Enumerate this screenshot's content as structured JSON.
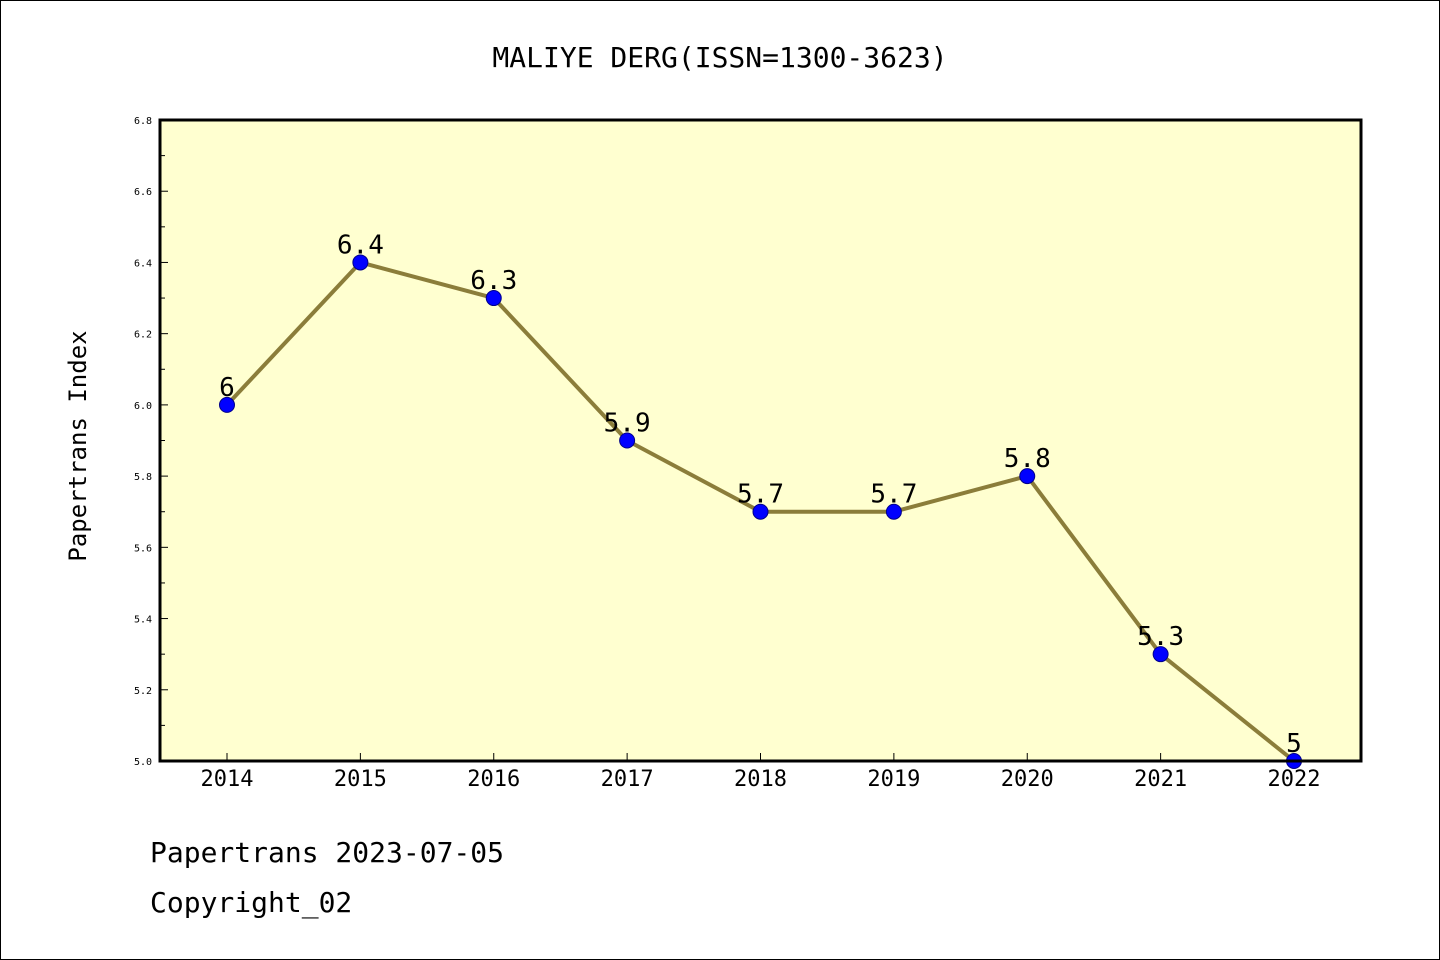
{
  "chart_data": {
    "type": "line",
    "title": "MALIYE DERG(ISSN=1300-3623)",
    "xlabel": "",
    "ylabel": "Papertrans Index",
    "categories": [
      "2014",
      "2015",
      "2016",
      "2017",
      "2018",
      "2019",
      "2020",
      "2021",
      "2022"
    ],
    "series": [
      {
        "values": [
          6.0,
          6.4,
          6.3,
          5.9,
          5.7,
          5.7,
          5.8,
          5.3,
          5.0
        ],
        "point_labels": [
          "6",
          "6.4",
          "6.3",
          "5.9",
          "5.7",
          "5.7",
          "5.8",
          "5.3",
          "5"
        ]
      }
    ],
    "ylim": [
      5.0,
      6.8
    ],
    "yticks": [
      "5.0",
      "5.2",
      "5.4",
      "5.6",
      "5.8",
      "6.0",
      "6.2",
      "6.4",
      "6.6",
      "6.8"
    ],
    "grid": false,
    "legend": "none",
    "colors": {
      "plot_background": "#ffffd0",
      "line": "#8b7d3a",
      "marker": "#0000ff",
      "marker_edge": "#00008b"
    }
  },
  "footer": {
    "date_line": "Papertrans 2023-07-05",
    "copyright": "Copyright_02"
  }
}
